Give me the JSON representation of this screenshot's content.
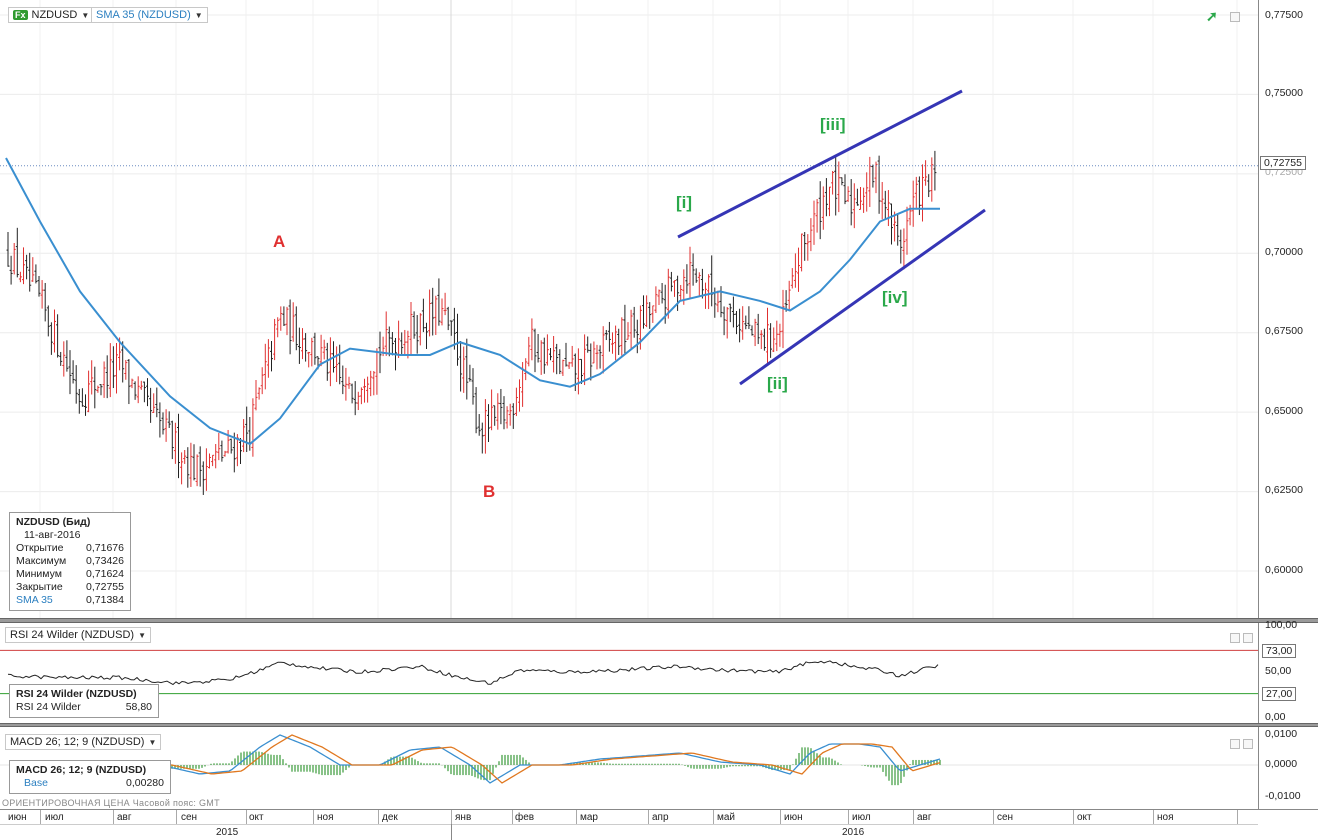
{
  "header": {
    "symbol": "NZDUSD",
    "symbol_badge": "Fx",
    "indicator": "SMA 35 (NZDUSD)"
  },
  "price_axis": {
    "ticks": [
      "0,77500",
      "0,75000",
      "0,72500",
      "0,70000",
      "0,67500",
      "0,65000",
      "0,62500",
      "0,60000"
    ],
    "last_price": "0,72755"
  },
  "info_box": {
    "title": "NZDUSD (Бид)",
    "date": "11-авг-2016",
    "rows": [
      {
        "label": "Открытие",
        "value": "0,71676"
      },
      {
        "label": "Максимум",
        "value": "0,73426"
      },
      {
        "label": "Минимум",
        "value": "0,71624"
      },
      {
        "label": "Закрытие",
        "value": "0,72755"
      },
      {
        "label": "SMA 35",
        "value": "0,71384"
      }
    ]
  },
  "waves": {
    "A": "A",
    "B": "B",
    "i": "[i]",
    "ii": "[ii]",
    "iii": "[iii]",
    "iv": "[iv]"
  },
  "rsi": {
    "tag": "RSI 24 Wilder (NZDUSD)",
    "box_title": "RSI 24 Wilder (NZDUSD)",
    "box_label": "RSI 24 Wilder",
    "box_value": "58,80",
    "ticks": [
      "100,00",
      "50,00",
      "0,00"
    ],
    "upper": "73,00",
    "lower": "27,00"
  },
  "macd": {
    "tag": "MACD 26; 12; 9 (NZDUSD)",
    "box_title": "MACD 26; 12; 9 (NZDUSD)",
    "box_label": "Base",
    "box_value": "0,00280",
    "ticks": [
      "0,0100",
      "0,0000",
      "-0,0100"
    ]
  },
  "footer": {
    "note": "ОРИЕНТИРОВОЧНАЯ ЦЕНА    Часовой пояс: GMT"
  },
  "time_axis": {
    "months": [
      "июн",
      "июл",
      "авг",
      "сен",
      "окт",
      "ноя",
      "дек",
      "янв",
      "фев",
      "мар",
      "апр",
      "май",
      "июн",
      "июл",
      "авг",
      "сен",
      "окт",
      "ноя"
    ],
    "years": [
      "2015",
      "2016"
    ]
  },
  "colors": {
    "up": "#e03030",
    "down": "#222222",
    "sma": "#3a8fd0",
    "channel": "#3535b5",
    "rsi_upper": "#d04040",
    "rsi_lower": "#30a030",
    "macd_fast": "#3a8fd0",
    "macd_slow": "#e07820",
    "hist": "#3a9a3a"
  },
  "chart_data": [
    {
      "type": "line",
      "title": "NZDUSD",
      "note": "OHLC bar chart with SMA 35 overlay and Elliott wave channel",
      "x_unit": "week",
      "x": [
        "2015-06-01",
        "2015-07-01",
        "2015-08-01",
        "2015-09-01",
        "2015-10-01",
        "2015-11-01",
        "2015-12-01",
        "2016-01-01",
        "2016-02-01",
        "2016-03-01",
        "2016-04-01",
        "2016-05-01",
        "2016-06-01",
        "2016-07-01",
        "2016-08-01",
        "2016-08-11"
      ],
      "series": [
        {
          "name": "NZDUSD (Бид) close",
          "values": [
            0.7,
            0.67,
            0.655,
            0.64,
            0.675,
            0.66,
            0.68,
            0.65,
            0.668,
            0.675,
            0.695,
            0.675,
            0.705,
            0.725,
            0.715,
            0.72755
          ]
        },
        {
          "name": "SMA 35",
          "values": [
            0.73,
            0.7,
            0.675,
            0.648,
            0.65,
            0.668,
            0.662,
            0.67,
            0.658,
            0.665,
            0.675,
            0.685,
            0.69,
            0.705,
            0.713,
            0.71384
          ]
        }
      ],
      "ylim": [
        0.585,
        0.78
      ],
      "last": {
        "open": 0.71676,
        "high": 0.73426,
        "low": 0.71624,
        "close": 0.72755
      }
    },
    {
      "type": "line",
      "title": "RSI 24 Wilder (NZDUSD)",
      "series": [
        {
          "name": "RSI 24 Wilder",
          "values": [
            42,
            38,
            40,
            45,
            62,
            50,
            56,
            38,
            52,
            56,
            60,
            52,
            64,
            62,
            55,
            58.8
          ]
        }
      ],
      "ylim": [
        0,
        100
      ],
      "levels": [
        73,
        27
      ]
    },
    {
      "type": "area",
      "title": "MACD 26; 12; 9 (NZDUSD)",
      "series": [
        {
          "name": "Base",
          "values": [
            0.001,
            -0.001,
            -0.003,
            -0.002,
            0.005,
            0.001,
            0.002,
            -0.003,
            0.001,
            0.001,
            0.002,
            -0.001,
            0.004,
            0.003,
            0.0,
            0.0028
          ]
        }
      ],
      "ylim": [
        -0.012,
        0.012
      ]
    }
  ]
}
